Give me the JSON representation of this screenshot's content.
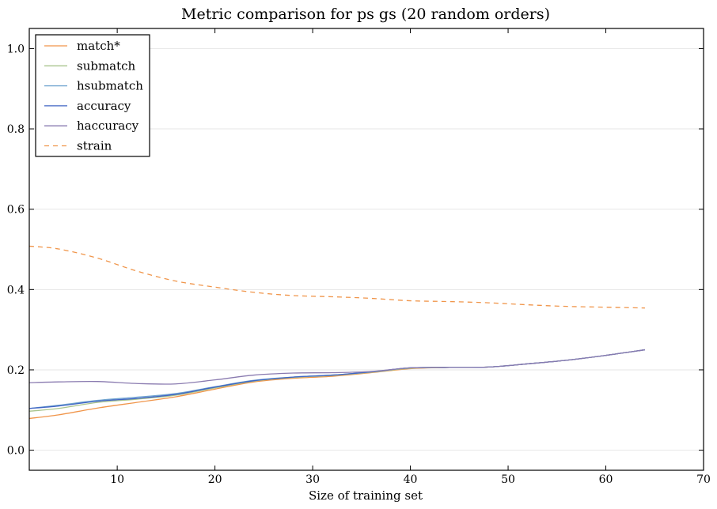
{
  "chart_data": {
    "type": "line",
    "title": "Metric comparison for ps gs (20 random orders)",
    "xlabel": "Size of training set",
    "ylabel": "",
    "xlim": [
      1,
      70
    ],
    "ylim": [
      -0.05,
      1.05
    ],
    "xticks": [
      10,
      20,
      30,
      40,
      50,
      60,
      70
    ],
    "yticks": [
      0.0,
      0.2,
      0.4,
      0.6,
      0.8,
      1.0
    ],
    "ytick_labels": [
      "0.0",
      "0.2",
      "0.4",
      "0.6",
      "0.8",
      "1.0"
    ],
    "grid": "horizontal",
    "legend_position": "top-left",
    "x": [
      1,
      4,
      8,
      12,
      16,
      20,
      24,
      28,
      32,
      36,
      40,
      44,
      48,
      52,
      56,
      60,
      64
    ],
    "series": [
      {
        "name": "match*",
        "color": "#f0954a",
        "dash": "solid",
        "values": [
          0.079,
          0.088,
          0.105,
          0.119,
          0.133,
          0.152,
          0.17,
          0.179,
          0.184,
          0.193,
          0.203,
          0.206,
          0.207,
          0.215,
          0.224,
          0.236,
          0.25
        ]
      },
      {
        "name": "submatch",
        "color": "#a9c48d",
        "dash": "solid",
        "values": [
          0.097,
          0.104,
          0.119,
          0.127,
          0.137,
          0.155,
          0.172,
          0.181,
          0.186,
          0.194,
          0.204,
          0.206,
          0.207,
          0.215,
          0.224,
          0.236,
          0.25
        ]
      },
      {
        "name": "hsubmatch",
        "color": "#6fa3cf",
        "dash": "solid",
        "values": [
          0.104,
          0.112,
          0.124,
          0.132,
          0.141,
          0.158,
          0.174,
          0.182,
          0.187,
          0.195,
          0.205,
          0.206,
          0.207,
          0.215,
          0.224,
          0.236,
          0.25
        ]
      },
      {
        "name": "accuracy",
        "color": "#4065c4",
        "dash": "solid",
        "values": [
          0.104,
          0.11,
          0.122,
          0.129,
          0.139,
          0.157,
          0.173,
          0.182,
          0.187,
          0.195,
          0.205,
          0.206,
          0.207,
          0.215,
          0.224,
          0.236,
          0.25
        ]
      },
      {
        "name": "haccuracy",
        "color": "#8a7bb0",
        "dash": "solid",
        "values": [
          0.168,
          0.17,
          0.171,
          0.166,
          0.165,
          0.175,
          0.187,
          0.192,
          0.193,
          0.196,
          0.205,
          0.206,
          0.207,
          0.215,
          0.224,
          0.236,
          0.25
        ]
      },
      {
        "name": "strain",
        "color": "#f0954a",
        "dash": "dashed",
        "values": [
          0.508,
          0.501,
          0.478,
          0.446,
          0.421,
          0.406,
          0.393,
          0.385,
          0.382,
          0.378,
          0.372,
          0.37,
          0.367,
          0.362,
          0.358,
          0.356,
          0.354
        ]
      }
    ]
  }
}
